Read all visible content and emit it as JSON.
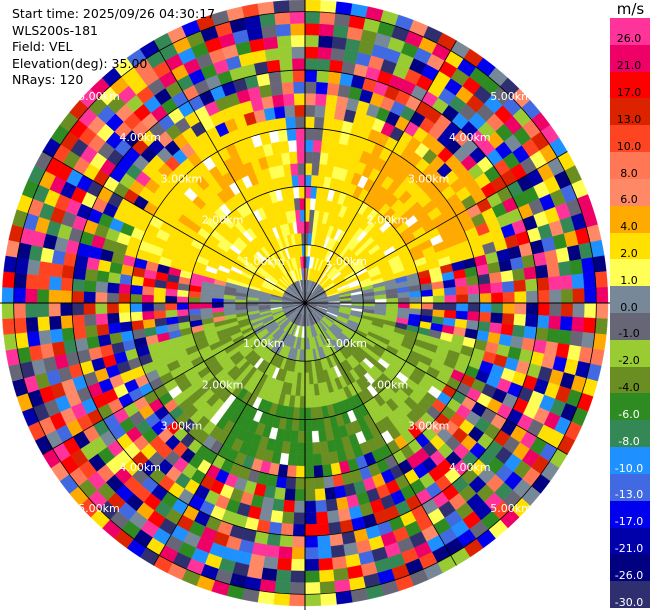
{
  "header": {
    "start_time": "Start time: 2025/09/26 04:30:17",
    "site": "WLS200s-181",
    "field": "Field: VEL",
    "elevation": "Elevation(deg): 35.00",
    "nrays": "NRays: 120"
  },
  "colorbar": {
    "unit": "m/s",
    "ticks": [
      "26.0",
      "21.0",
      "17.0",
      "13.0",
      "10.0",
      "8.0",
      "6.0",
      "4.0",
      "2.0",
      "1.0",
      "0.0",
      "-1.0",
      "-2.0",
      "-4.0",
      "-6.0",
      "-8.0",
      "-10.0",
      "-13.0",
      "-17.0",
      "-21.0",
      "-26.0",
      "-30.0"
    ],
    "colors": [
      "#ff3399",
      "#ee0066",
      "#ff0000",
      "#dd2200",
      "#ff4422",
      "#ff7755",
      "#ff8866",
      "#ffaa00",
      "#ffe000",
      "#ffff55",
      "#778899",
      "#666677",
      "#99cc33",
      "#6b8e23",
      "#2e8b22",
      "#338855",
      "#1e90ff",
      "#4169e1",
      "#0000ee",
      "#0000aa",
      "#000080",
      "#2f2f6f"
    ]
  },
  "chart_data": {
    "type": "heatmap",
    "projection": "polar PPI",
    "field": "VEL",
    "units": "m/s",
    "range_rings_km": [
      1.0,
      2.0,
      3.0,
      4.0,
      5.0
    ],
    "ring_labels": [
      "1.00km",
      "2.00km",
      "3.00km",
      "4.00km",
      "5.00km"
    ],
    "max_range_km": 5.2,
    "nrays": 120,
    "grid": true,
    "spokes_deg": [
      0,
      30,
      60,
      90,
      120,
      150,
      180,
      210,
      240,
      270,
      300,
      330
    ]
  }
}
